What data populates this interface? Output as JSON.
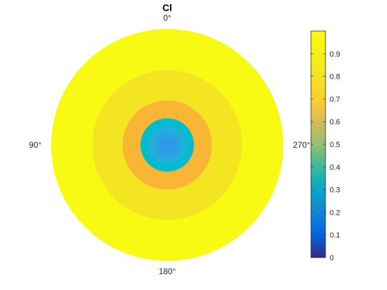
{
  "chart_data": {
    "type": "heatmap",
    "subtype": "polar",
    "title": "Cl",
    "theta_zero_location": "top",
    "theta_direction": "counterclockwise",
    "theta_tick_labels": [
      {
        "angle": 0,
        "label": "0°"
      },
      {
        "angle": 90,
        "label": "90°"
      },
      {
        "angle": 180,
        "label": "180°"
      },
      {
        "angle": 270,
        "label": "270°"
      }
    ],
    "rings": [
      {
        "r_outer": 1.0,
        "value": 0.99,
        "color": "#f9fa14"
      },
      {
        "r_outer": 0.645,
        "value": 0.93,
        "color": "#f4e523"
      },
      {
        "r_outer": 0.385,
        "value": 0.8,
        "color": "#f9b636"
      },
      {
        "r_outer": 0.23,
        "value": 0.5,
        "color": "#00bccf"
      },
      {
        "r_outer": 0.165,
        "value": 0.45,
        "color": "#20b1d9"
      },
      {
        "r_outer": 0.125,
        "value": 0.42,
        "color": "#28a6e0"
      },
      {
        "r_outer": 0.075,
        "value": 0.4,
        "color": "#2d9ae8"
      }
    ],
    "colorbar": {
      "colormap": "parula",
      "clim": [
        0,
        1
      ],
      "tick_labels": [
        "0",
        "0.1",
        "0.2",
        "0.3",
        "0.4",
        "0.5",
        "0.6",
        "0.7",
        "0.8",
        "0.9"
      ],
      "tick_values": [
        0,
        0.1,
        0.2,
        0.3,
        0.4,
        0.5,
        0.6,
        0.7,
        0.8,
        0.9
      ]
    }
  }
}
